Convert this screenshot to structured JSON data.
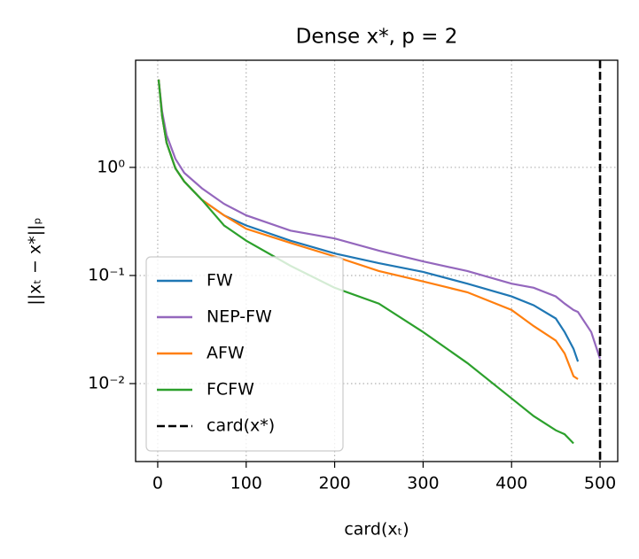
{
  "chart_data": {
    "type": "line",
    "title": "Dense x*, p = 2",
    "xlabel": "card(xₜ)",
    "ylabel": "||xₜ − x*||ₚ",
    "x": [
      1,
      5,
      10,
      20,
      30,
      50,
      75,
      100,
      150,
      200,
      250,
      300,
      350,
      400,
      425,
      450,
      460,
      470,
      475,
      490,
      500
    ],
    "series": [
      {
        "name": "FW",
        "color": "#1f77b4",
        "values": [
          6.5,
          3.0,
          1.7,
          0.98,
          0.74,
          0.5,
          0.36,
          0.29,
          0.21,
          0.16,
          0.13,
          0.108,
          0.084,
          0.064,
          0.053,
          0.04,
          0.03,
          0.021,
          0.016,
          null,
          null
        ]
      },
      {
        "name": "NEP-FW",
        "color": "#9467bd",
        "values": [
          6.5,
          3.3,
          2.0,
          1.2,
          0.89,
          0.64,
          0.46,
          0.36,
          0.26,
          0.22,
          0.17,
          0.135,
          0.11,
          0.084,
          0.077,
          0.064,
          0.055,
          0.048,
          0.046,
          0.03,
          0.017
        ]
      },
      {
        "name": "AFW",
        "color": "#ff7f0e",
        "values": [
          6.5,
          3.0,
          1.7,
          0.98,
          0.74,
          0.5,
          0.36,
          0.27,
          0.2,
          0.15,
          0.11,
          0.088,
          0.07,
          0.048,
          0.034,
          0.025,
          0.019,
          0.0117,
          0.011,
          null,
          null
        ]
      },
      {
        "name": "FCFW",
        "color": "#2ca02c",
        "values": [
          6.5,
          3.0,
          1.7,
          0.98,
          0.74,
          0.5,
          0.29,
          0.21,
          0.123,
          0.077,
          0.055,
          0.03,
          0.0155,
          0.0073,
          0.005,
          0.0037,
          0.0034,
          0.0028,
          null,
          null,
          null
        ]
      }
    ],
    "vline": {
      "x": 500,
      "label": "card(x*)",
      "color": "#000000"
    },
    "xlim": [
      -25,
      520
    ],
    "xticks": [
      0,
      100,
      200,
      300,
      400,
      500
    ],
    "ylim": [
      0.0019,
      9.8
    ],
    "ylog": true,
    "yticks": [
      {
        "value": 0.01,
        "label": "10⁻²"
      },
      {
        "value": 0.1,
        "label": "10⁻¹"
      },
      {
        "value": 1,
        "label": "10⁰"
      }
    ],
    "grid": true,
    "legend": "lower left"
  }
}
